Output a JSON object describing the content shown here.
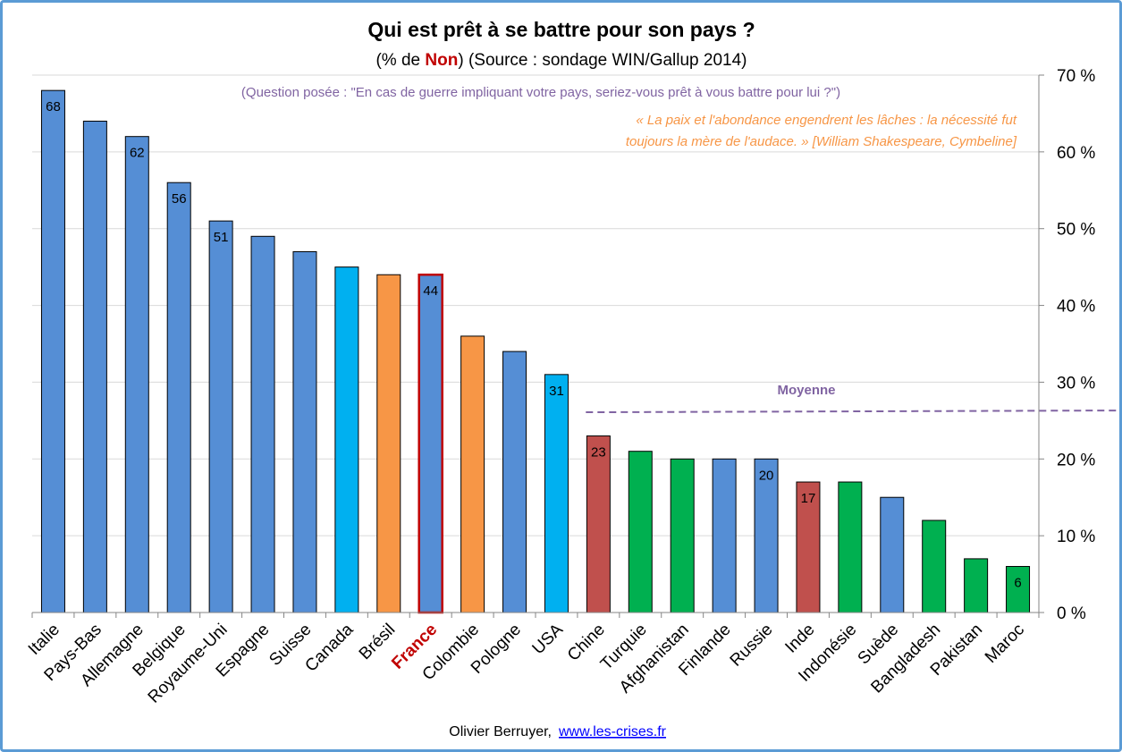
{
  "chart_data": {
    "type": "bar",
    "title": "Qui est prêt à se battre pour son pays ?",
    "subtitle": {
      "before": "(% de ",
      "highlight": "Non",
      "after": ") (Source : sondage WIN/Gallup 2014)"
    },
    "question": "(Question posée : \"En cas de guerre impliquant votre pays, seriez-vous prêt à vous battre pour lui ?\")",
    "quote_lines": [
      "« La paix et l'abondance engendrent les lâches : la nécessité fut",
      "toujours la mère de l'audace. » [William Shakespeare, Cymbeline]"
    ],
    "categories": [
      "Italie",
      "Pays-Bas",
      "Allemagne",
      "Belgique",
      "Royaume-Uni",
      "Espagne",
      "Suisse",
      "Canada",
      "Brésil",
      "France",
      "Colombie",
      "Pologne",
      "USA",
      "Chine",
      "Turquie",
      "Afghanistan",
      "Finlande",
      "Russie",
      "Inde",
      "Indonésie",
      "Suède",
      "Bangladesh",
      "Pakistan",
      "Maroc"
    ],
    "values": [
      68,
      64,
      62,
      56,
      51,
      49,
      47,
      45,
      44,
      44,
      36,
      34,
      31,
      23,
      21,
      20,
      20,
      20,
      17,
      17,
      15,
      12,
      7,
      6
    ],
    "bar_colors": [
      "#558ed5",
      "#558ed5",
      "#558ed5",
      "#558ed5",
      "#558ed5",
      "#558ed5",
      "#558ed5",
      "#00b0f0",
      "#f79646",
      "#558ed5",
      "#f79646",
      "#558ed5",
      "#00b0f0",
      "#c0504d",
      "#00b050",
      "#00b050",
      "#558ed5",
      "#558ed5",
      "#c0504d",
      "#00b050",
      "#558ed5",
      "#00b050",
      "#00b050",
      "#00b050"
    ],
    "data_labels": [
      "68",
      "",
      "62",
      "56",
      "51",
      "",
      "",
      "",
      "",
      "44",
      "",
      "",
      "31",
      "23",
      "",
      "",
      "",
      "20",
      "17",
      "",
      "",
      "",
      "",
      "6"
    ],
    "highlight_category": "France",
    "highlight_color": "#c00000",
    "ylim": [
      0,
      70
    ],
    "yticks": [
      0,
      10,
      20,
      30,
      40,
      50,
      60,
      70
    ],
    "ytick_labels": [
      "0 %",
      "10 %",
      "20 %",
      "30 %",
      "40 %",
      "50 %",
      "60 %",
      "70 %"
    ],
    "y_axis_side": "right",
    "grid": true,
    "average": {
      "label": "Moyenne",
      "value": 26.2,
      "color": "#8064a2"
    },
    "colors": {
      "question": "#8064a2",
      "quote": "#f79646",
      "frame": "#5b9bd5"
    }
  },
  "footer": {
    "author": "Olivier Berruyer,",
    "link": "www.les-crises.fr"
  }
}
